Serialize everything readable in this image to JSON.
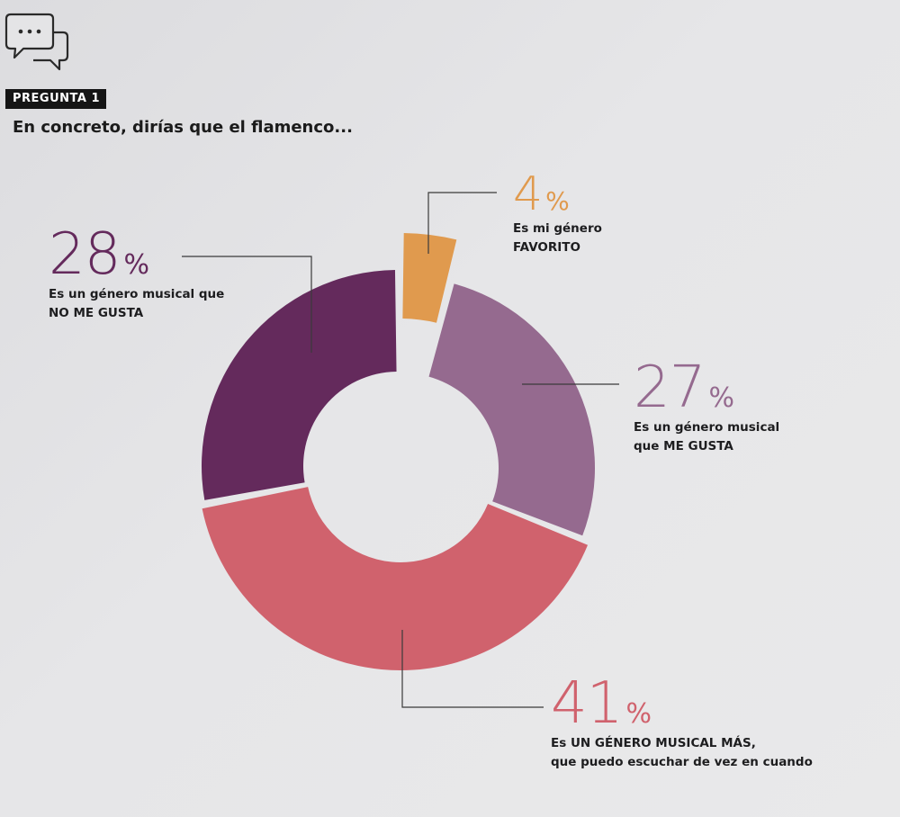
{
  "header": {
    "tag": "PREGUNTA 1",
    "question": "En concreto, dirías que el flamenco..."
  },
  "icons": {
    "chat": "chat-bubbles-icon"
  },
  "colors": {
    "favorito": "#e09a4e",
    "me_gusta": "#956a8f",
    "mas": "#d0626d",
    "no_gusta": "#642a5c",
    "leader": "#3a3a3a"
  },
  "chart_data": {
    "type": "pie",
    "variant": "exploded-donut",
    "title": "",
    "slices": [
      {
        "key": "favorito",
        "percent": 4,
        "label_num": "4",
        "unit": "%",
        "desc_line1": "Es mi género",
        "desc_line2": "FAVORITO",
        "color": "#e09a4e"
      },
      {
        "key": "me_gusta",
        "percent": 27,
        "label_num": "27",
        "unit": "%",
        "desc_line1": "Es un género musical",
        "desc_line2": "que ME GUSTA",
        "color": "#956a8f"
      },
      {
        "key": "mas",
        "percent": 41,
        "label_num": "41",
        "unit": "%",
        "desc_line1": "Es UN GÉNERO MUSICAL MÁS,",
        "desc_line2": "que puedo escuchar de vez en cuando",
        "color": "#d0626d"
      },
      {
        "key": "no_gusta",
        "percent": 28,
        "label_num": "28",
        "unit": "%",
        "desc_line1": "Es un género musical que",
        "desc_line2": "NO ME GUSTA",
        "color": "#642a5c"
      }
    ]
  }
}
